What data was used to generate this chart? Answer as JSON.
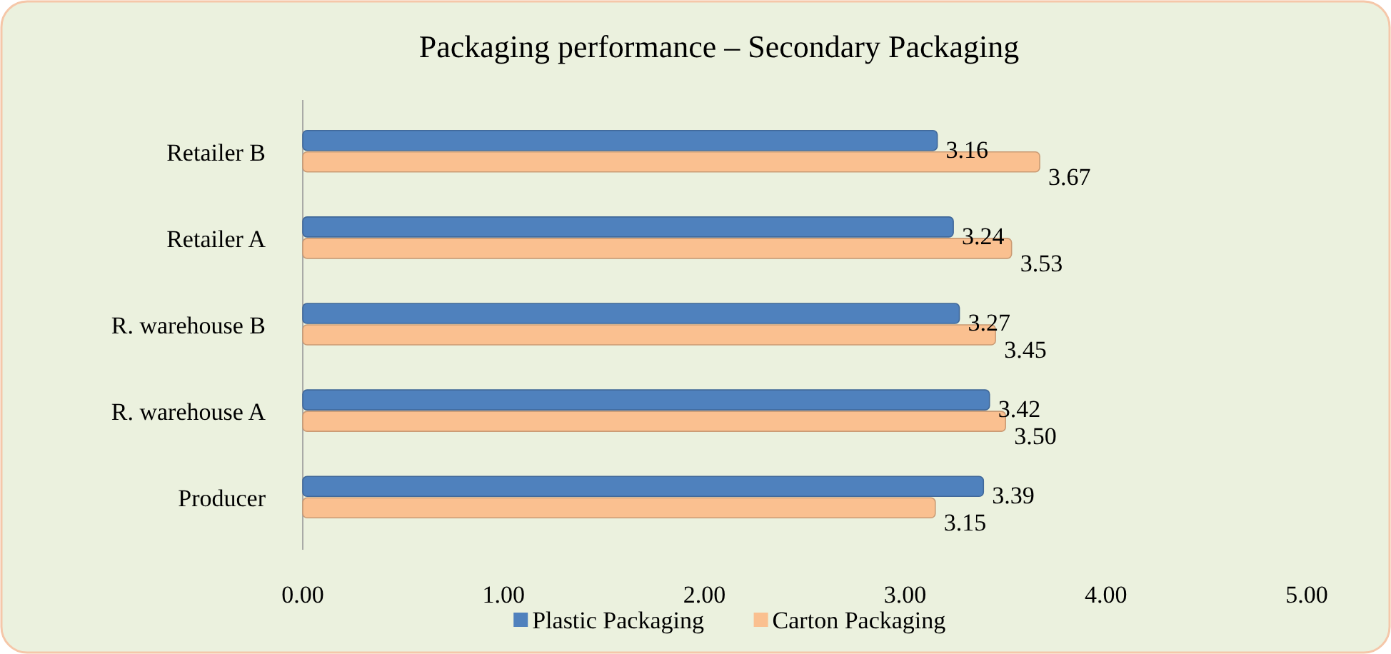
{
  "chart_data": {
    "type": "bar",
    "orientation": "horizontal",
    "title": "Packaging performance – Secondary Packaging",
    "categories": [
      "Retailer B",
      "Retailer A",
      "R. warehouse B",
      "R. warehouse A",
      "Producer"
    ],
    "series": [
      {
        "name": "Plastic Packaging",
        "color": "#4f81bd",
        "values": [
          3.16,
          3.24,
          3.27,
          3.42,
          3.39
        ],
        "value_labels": [
          "3.16",
          "3.24",
          "3.27",
          "3.42",
          "3.39"
        ]
      },
      {
        "name": "Carton Packaging",
        "color": "#fac090",
        "values": [
          3.67,
          3.53,
          3.45,
          3.5,
          3.15
        ],
        "value_labels": [
          "3.67",
          "3.53",
          "3.45",
          "3.50",
          "3.15"
        ]
      }
    ],
    "xlim": [
      0,
      5
    ],
    "xticks": [
      {
        "value": 0,
        "label": "0.00"
      },
      {
        "value": 1,
        "label": "1.00"
      },
      {
        "value": 2,
        "label": "2.00"
      },
      {
        "value": 3,
        "label": "3.00"
      },
      {
        "value": 4,
        "label": "4.00"
      },
      {
        "value": 5,
        "label": "5.00"
      }
    ],
    "legend": "bottom"
  }
}
